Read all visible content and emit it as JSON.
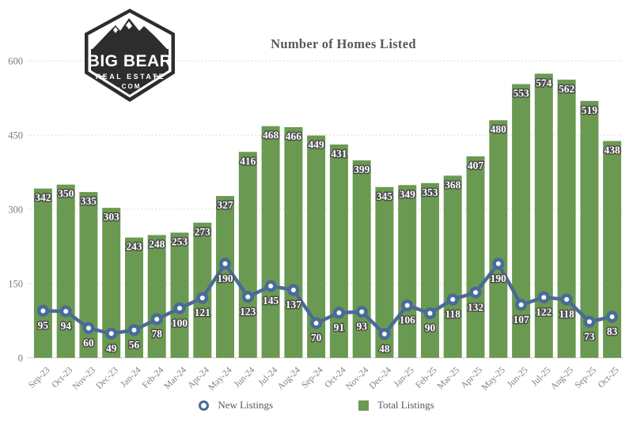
{
  "logo": {
    "line1": "BIG BEAR",
    "line2": "REAL ESTATE",
    "line3": ".COM"
  },
  "chart_data": {
    "type": "bar",
    "title": "Number of Homes Listed",
    "categories": [
      "Sep-23",
      "Oct-23",
      "Nov-23",
      "Dec-23",
      "Jan-24",
      "Feb-24",
      "Mar-24",
      "Apr-24",
      "May-24",
      "Jun-24",
      "Jul-24",
      "Aug-24",
      "Sep-24",
      "Oct-24",
      "Nov-24",
      "Dec-24",
      "Jan-25",
      "Feb-25",
      "Mar-25",
      "Apr-25",
      "May-25",
      "Jun-25",
      "Jul-25",
      "Aug-25",
      "Sep-25",
      "Oct-25"
    ],
    "series": [
      {
        "name": "Total Listings",
        "type": "bar",
        "color": "#6a9a51",
        "values": [
          342,
          350,
          335,
          303,
          243,
          248,
          253,
          273,
          327,
          416,
          468,
          466,
          449,
          431,
          399,
          345,
          349,
          353,
          368,
          407,
          480,
          553,
          574,
          562,
          519,
          438
        ]
      },
      {
        "name": "New Listings",
        "type": "line",
        "color": "#4a6b97",
        "values": [
          95,
          94,
          60,
          49,
          56,
          78,
          100,
          121,
          190,
          123,
          145,
          137,
          70,
          91,
          93,
          48,
          106,
          90,
          118,
          132,
          190,
          107,
          122,
          118,
          73,
          83
        ]
      }
    ],
    "xlabel": "",
    "ylabel": "",
    "ylim": [
      0,
      600
    ],
    "yticks": [
      0,
      150,
      300,
      450,
      600
    ],
    "grid": "horizontal-dotted",
    "legend_position": "bottom",
    "data_labels": true
  },
  "colors": {
    "bar_green": "#6a9a51",
    "line_blue": "#4a6b97",
    "title_gray": "#595959",
    "axis_gray": "#7a7a7a",
    "gridline": "#cfcfcf",
    "label_outline": "#4a4a4a",
    "logo_dark": "#2d2d2d"
  }
}
